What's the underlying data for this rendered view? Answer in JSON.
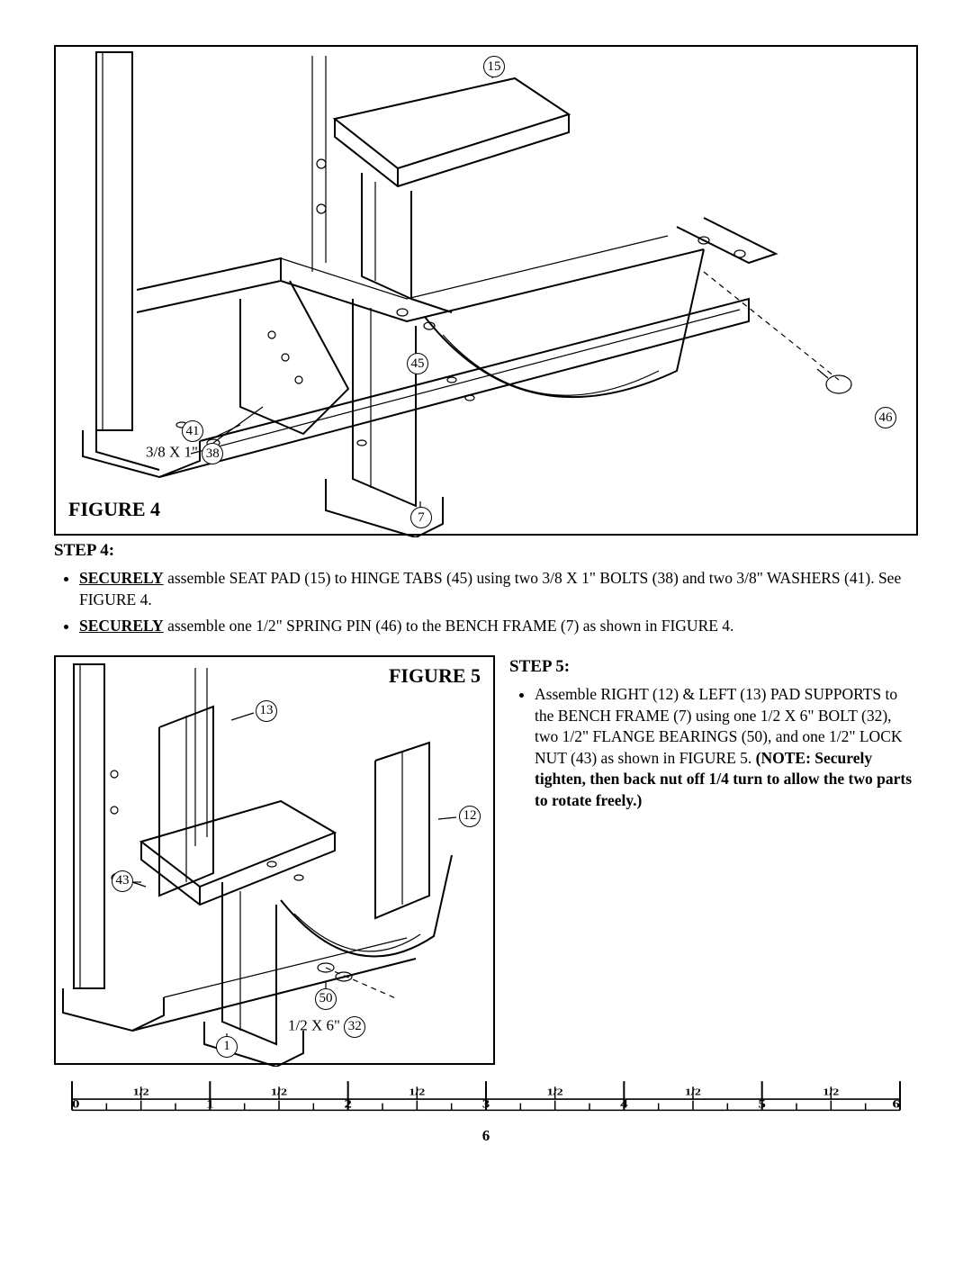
{
  "figure4": {
    "label": "FIGURE 4",
    "bolt_label": "3/8 X 1\"",
    "callouts": {
      "c15": "15",
      "c45": "45",
      "c41": "41",
      "c38": "38",
      "c7": "7",
      "c46": "46"
    }
  },
  "step4": {
    "heading": "STEP 4:",
    "items": [
      {
        "pre": "SECURELY",
        "rest": " assemble SEAT PAD (15) to HINGE TABS (45) using two 3/8 X 1\" BOLTS (38) and two 3/8\" WASHERS (41). See FIGURE 4."
      },
      {
        "pre": "SECURELY",
        "rest": " assemble one 1/2\" SPRING PIN (46)  to the BENCH FRAME (7) as shown in FIGURE 4."
      }
    ]
  },
  "figure5": {
    "label": "FIGURE 5",
    "bolt_label": "1/2 X 6\"",
    "callouts": {
      "c13": "13",
      "c12": "12",
      "c43": "43",
      "c50": "50",
      "c1": "1",
      "c32": "32"
    }
  },
  "step5": {
    "heading": "STEP 5:",
    "item_plain": "Assemble RIGHT (12) & LEFT (13) PAD SUP­PORTS to the BENCH FRAME (7) using one 1/2 X 6\" BOLT (32), two 1/2\" FLANGE BEARINGS (50), and one 1/2\" LOCK NUT (43) as shown in FIGURE 5. ",
    "item_bold": "(NOTE: Securely tighten, then back nut off 1/4 turn to allow the two parts to rotate freely.)"
  },
  "ruler": {
    "majors": [
      "0",
      "1",
      "2",
      "3",
      "4",
      "5",
      "6"
    ],
    "half": "1/2"
  },
  "page": "6"
}
